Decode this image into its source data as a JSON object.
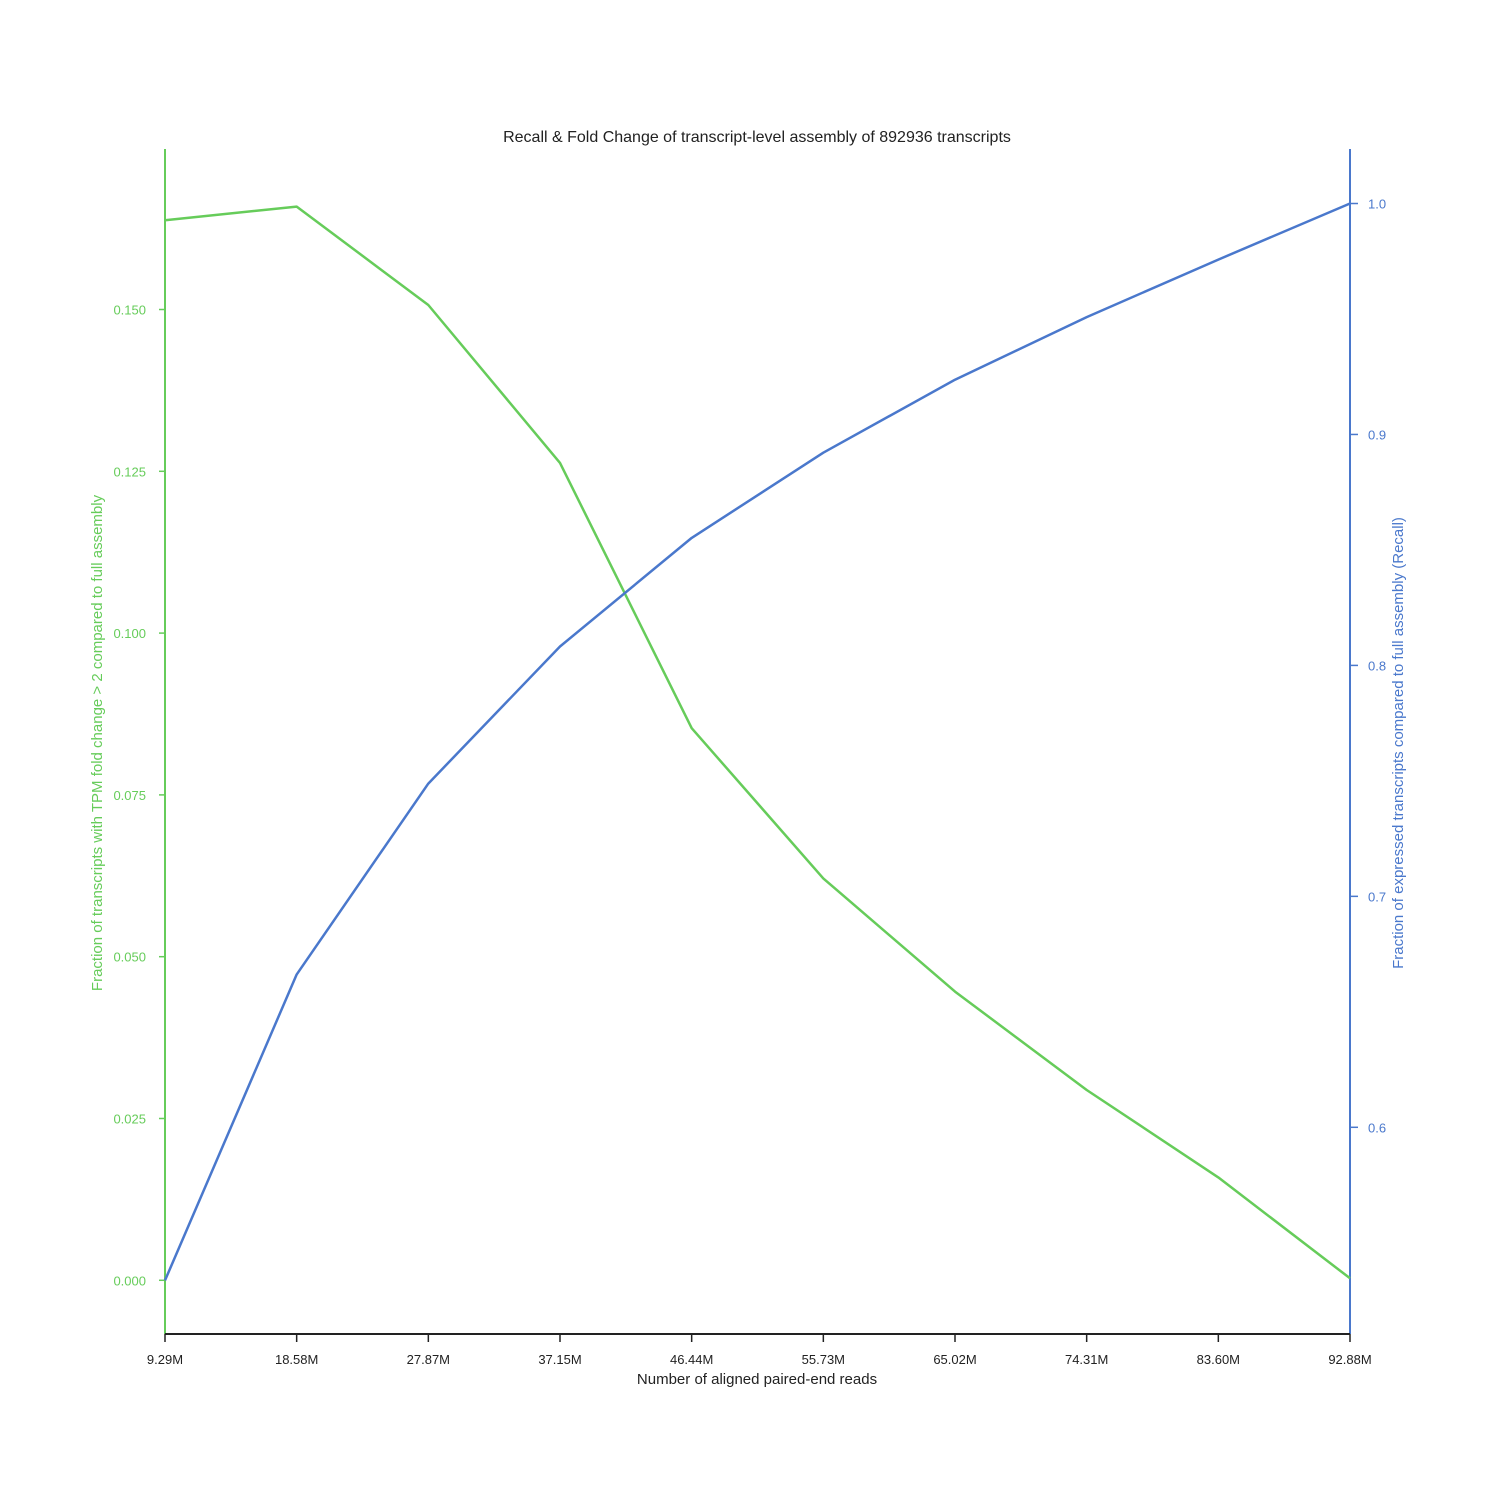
{
  "chart_data": {
    "type": "line",
    "title": "Recall & Fold Change of transcript-level assembly of 892936 transcripts",
    "xlabel": "Number of aligned paired-end reads",
    "categories": [
      "9.29M",
      "18.58M",
      "27.87M",
      "37.15M",
      "46.44M",
      "55.73M",
      "65.02M",
      "74.31M",
      "83.60M",
      "92.88M"
    ],
    "grid": false,
    "left_axis": {
      "label": "Fraction of transcripts with TPM fold change > 2 compared to full assembly",
      "color": "#66cc5a",
      "ticks": [
        "0.000",
        "0.025",
        "0.050",
        "0.075",
        "0.100",
        "0.125",
        "0.150"
      ],
      "tick_values": [
        0.0,
        0.025,
        0.05,
        0.075,
        0.1,
        0.125,
        0.15
      ],
      "ylim": [
        -0.0083,
        0.1748
      ]
    },
    "right_axis": {
      "label": "Fraction of expressed transcripts compared to full assembly (Recall)",
      "color": "#4a78cc",
      "ticks": [
        "0.6",
        "0.7",
        "0.8",
        "0.9",
        "1.0"
      ],
      "tick_values": [
        0.6,
        0.7,
        0.8,
        0.9,
        1.0
      ],
      "ylim": [
        0.5105,
        1.0236
      ]
    },
    "series": [
      {
        "axis": "left",
        "color": "#66cc5a",
        "values": [
          0.1638,
          0.1659,
          0.1507,
          0.1263,
          0.0853,
          0.0621,
          0.0446,
          0.0294,
          0.0159,
          0.0003
        ]
      },
      {
        "axis": "right",
        "color": "#4a78cc",
        "values": [
          0.5337,
          0.6662,
          0.7488,
          0.8082,
          0.8552,
          0.8921,
          0.9237,
          0.9508,
          0.9757,
          1.0
        ]
      }
    ]
  }
}
